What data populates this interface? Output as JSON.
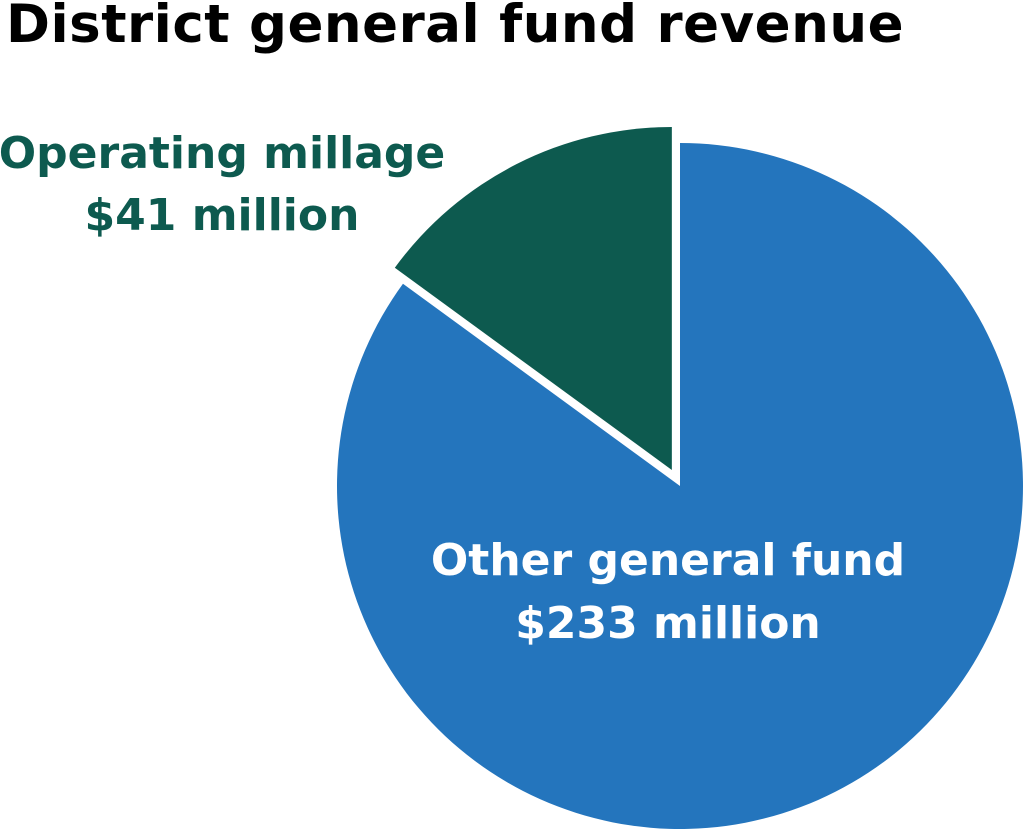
{
  "chart_data": {
    "type": "pie",
    "title": "District general fund revenue",
    "slices": [
      {
        "label": "Operating millage",
        "value_label": "$41 million",
        "value": 41,
        "color": "#0d5a4f",
        "text_color": "#0d5a4f",
        "exploded": true
      },
      {
        "label": "Other general fund",
        "value_label": "$233 million",
        "value": 233,
        "color": "#2475bd",
        "text_color": "#ffffff",
        "exploded": false
      }
    ]
  }
}
